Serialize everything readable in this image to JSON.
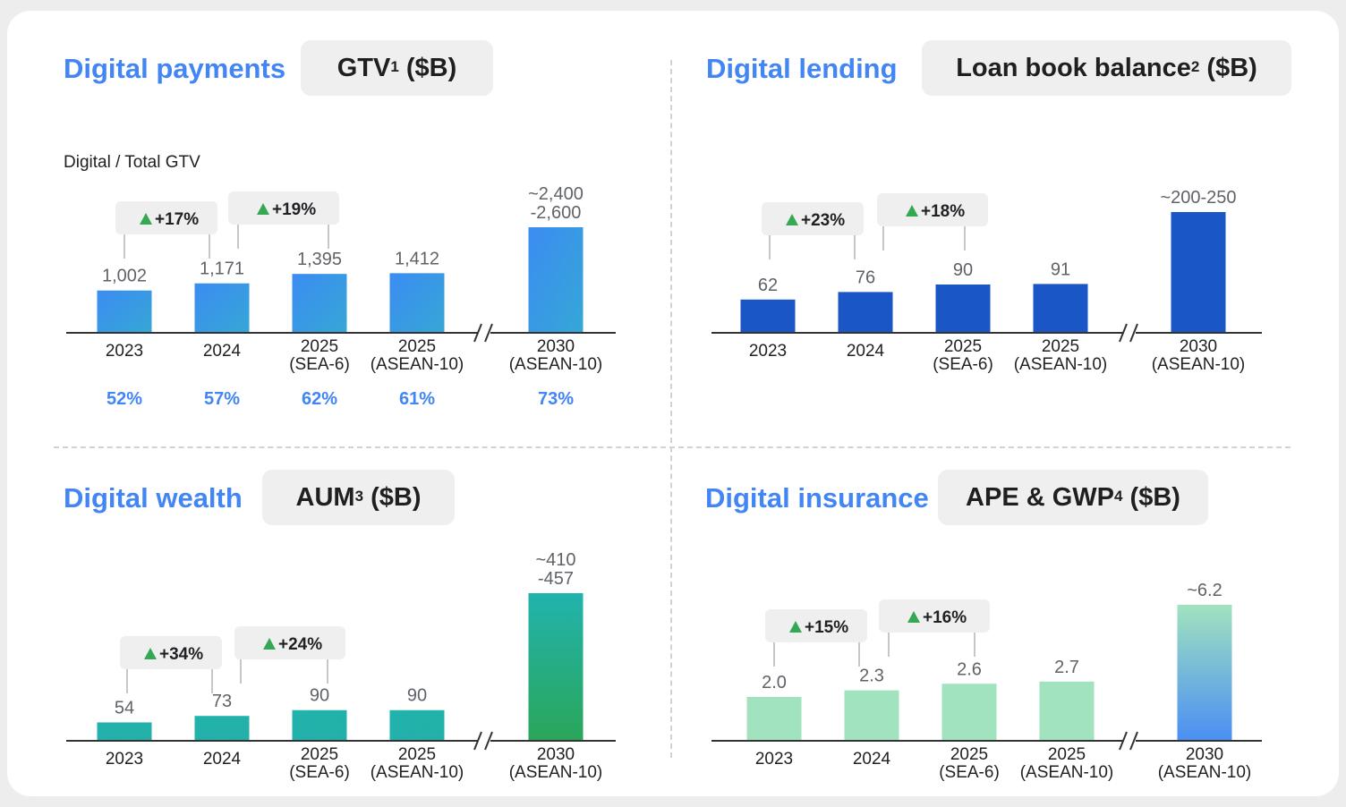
{
  "panels": [
    {
      "title": "Digital payments",
      "metric": "GTV",
      "metric_sup": "1",
      "metric_unit": "($B)",
      "subtitle": "Digital / Total GTV",
      "growth": [
        "+17%",
        "+19%"
      ],
      "digital_share": [
        "52%",
        "57%",
        "62%",
        "61%",
        "73%"
      ],
      "colors": {
        "top": "#3c8cf2",
        "bottom": "#3c8cf2",
        "side": "#35a7d6"
      }
    },
    {
      "title": "Digital lending",
      "metric": "Loan book balance",
      "metric_sup": "2",
      "metric_unit": "($B)",
      "subtitle": "",
      "growth": [
        "+23%",
        "+18%"
      ],
      "digital_share": [],
      "colors": {
        "top": "#1a56c6",
        "bottom": "#1a56c6",
        "side": "#1a56c6"
      }
    },
    {
      "title": "Digital wealth",
      "metric": "AUM",
      "metric_sup": "3",
      "metric_unit": "($B)",
      "subtitle": "",
      "growth": [
        "+34%",
        "+24%"
      ],
      "digital_share": [],
      "colors": {
        "top": "#22b3ad",
        "bottom": "#2aa65a",
        "side": "#23b0a8"
      }
    },
    {
      "title": "Digital insurance",
      "metric": "APE & GWP",
      "metric_sup": "4",
      "metric_unit": "($B)",
      "subtitle": "",
      "growth": [
        "+15%",
        "+16%"
      ],
      "digital_share": [],
      "colors": {
        "top": "#a1e3be",
        "bottom": "#4a8ef4",
        "side": "#a1e3be"
      }
    }
  ],
  "chart_data": [
    {
      "type": "bar",
      "title": "GTV ($B)",
      "categories": [
        "2023",
        "2024",
        "2025\n(SEA-6)",
        "2025\n(ASEAN-10)",
        "2030\n(ASEAN-10)"
      ],
      "values": [
        1002,
        1171,
        1395,
        1412,
        2500
      ],
      "value_labels": [
        "1,002",
        "1,171",
        "1,395",
        "1,412",
        "~2,400\n-2,600"
      ],
      "axis_break_before_last": true
    },
    {
      "type": "bar",
      "title": "Loan book balance ($B)",
      "categories": [
        "2023",
        "2024",
        "2025\n(SEA-6)",
        "2025\n(ASEAN-10)",
        "2030\n(ASEAN-10)"
      ],
      "values": [
        62,
        76,
        90,
        91,
        225
      ],
      "value_labels": [
        "62",
        "76",
        "90",
        "91",
        "~200-250"
      ],
      "axis_break_before_last": true
    },
    {
      "type": "bar",
      "title": "AUM ($B)",
      "categories": [
        "2023",
        "2024",
        "2025\n(SEA-6)",
        "2025\n(ASEAN-10)",
        "2030\n(ASEAN-10)"
      ],
      "values": [
        54,
        73,
        90,
        90,
        433.5
      ],
      "value_labels": [
        "54",
        "73",
        "90",
        "90",
        "~410\n-457"
      ],
      "axis_break_before_last": true
    },
    {
      "type": "bar",
      "title": "APE & GWP ($B)",
      "categories": [
        "2023",
        "2024",
        "2025\n(SEA-6)",
        "2025\n(ASEAN-10)",
        "2030\n(ASEAN-10)"
      ],
      "values": [
        2.0,
        2.3,
        2.6,
        2.7,
        6.2
      ],
      "value_labels": [
        "2.0",
        "2.3",
        "2.6",
        "2.7",
        "~6.2"
      ],
      "axis_break_before_last": true
    }
  ]
}
